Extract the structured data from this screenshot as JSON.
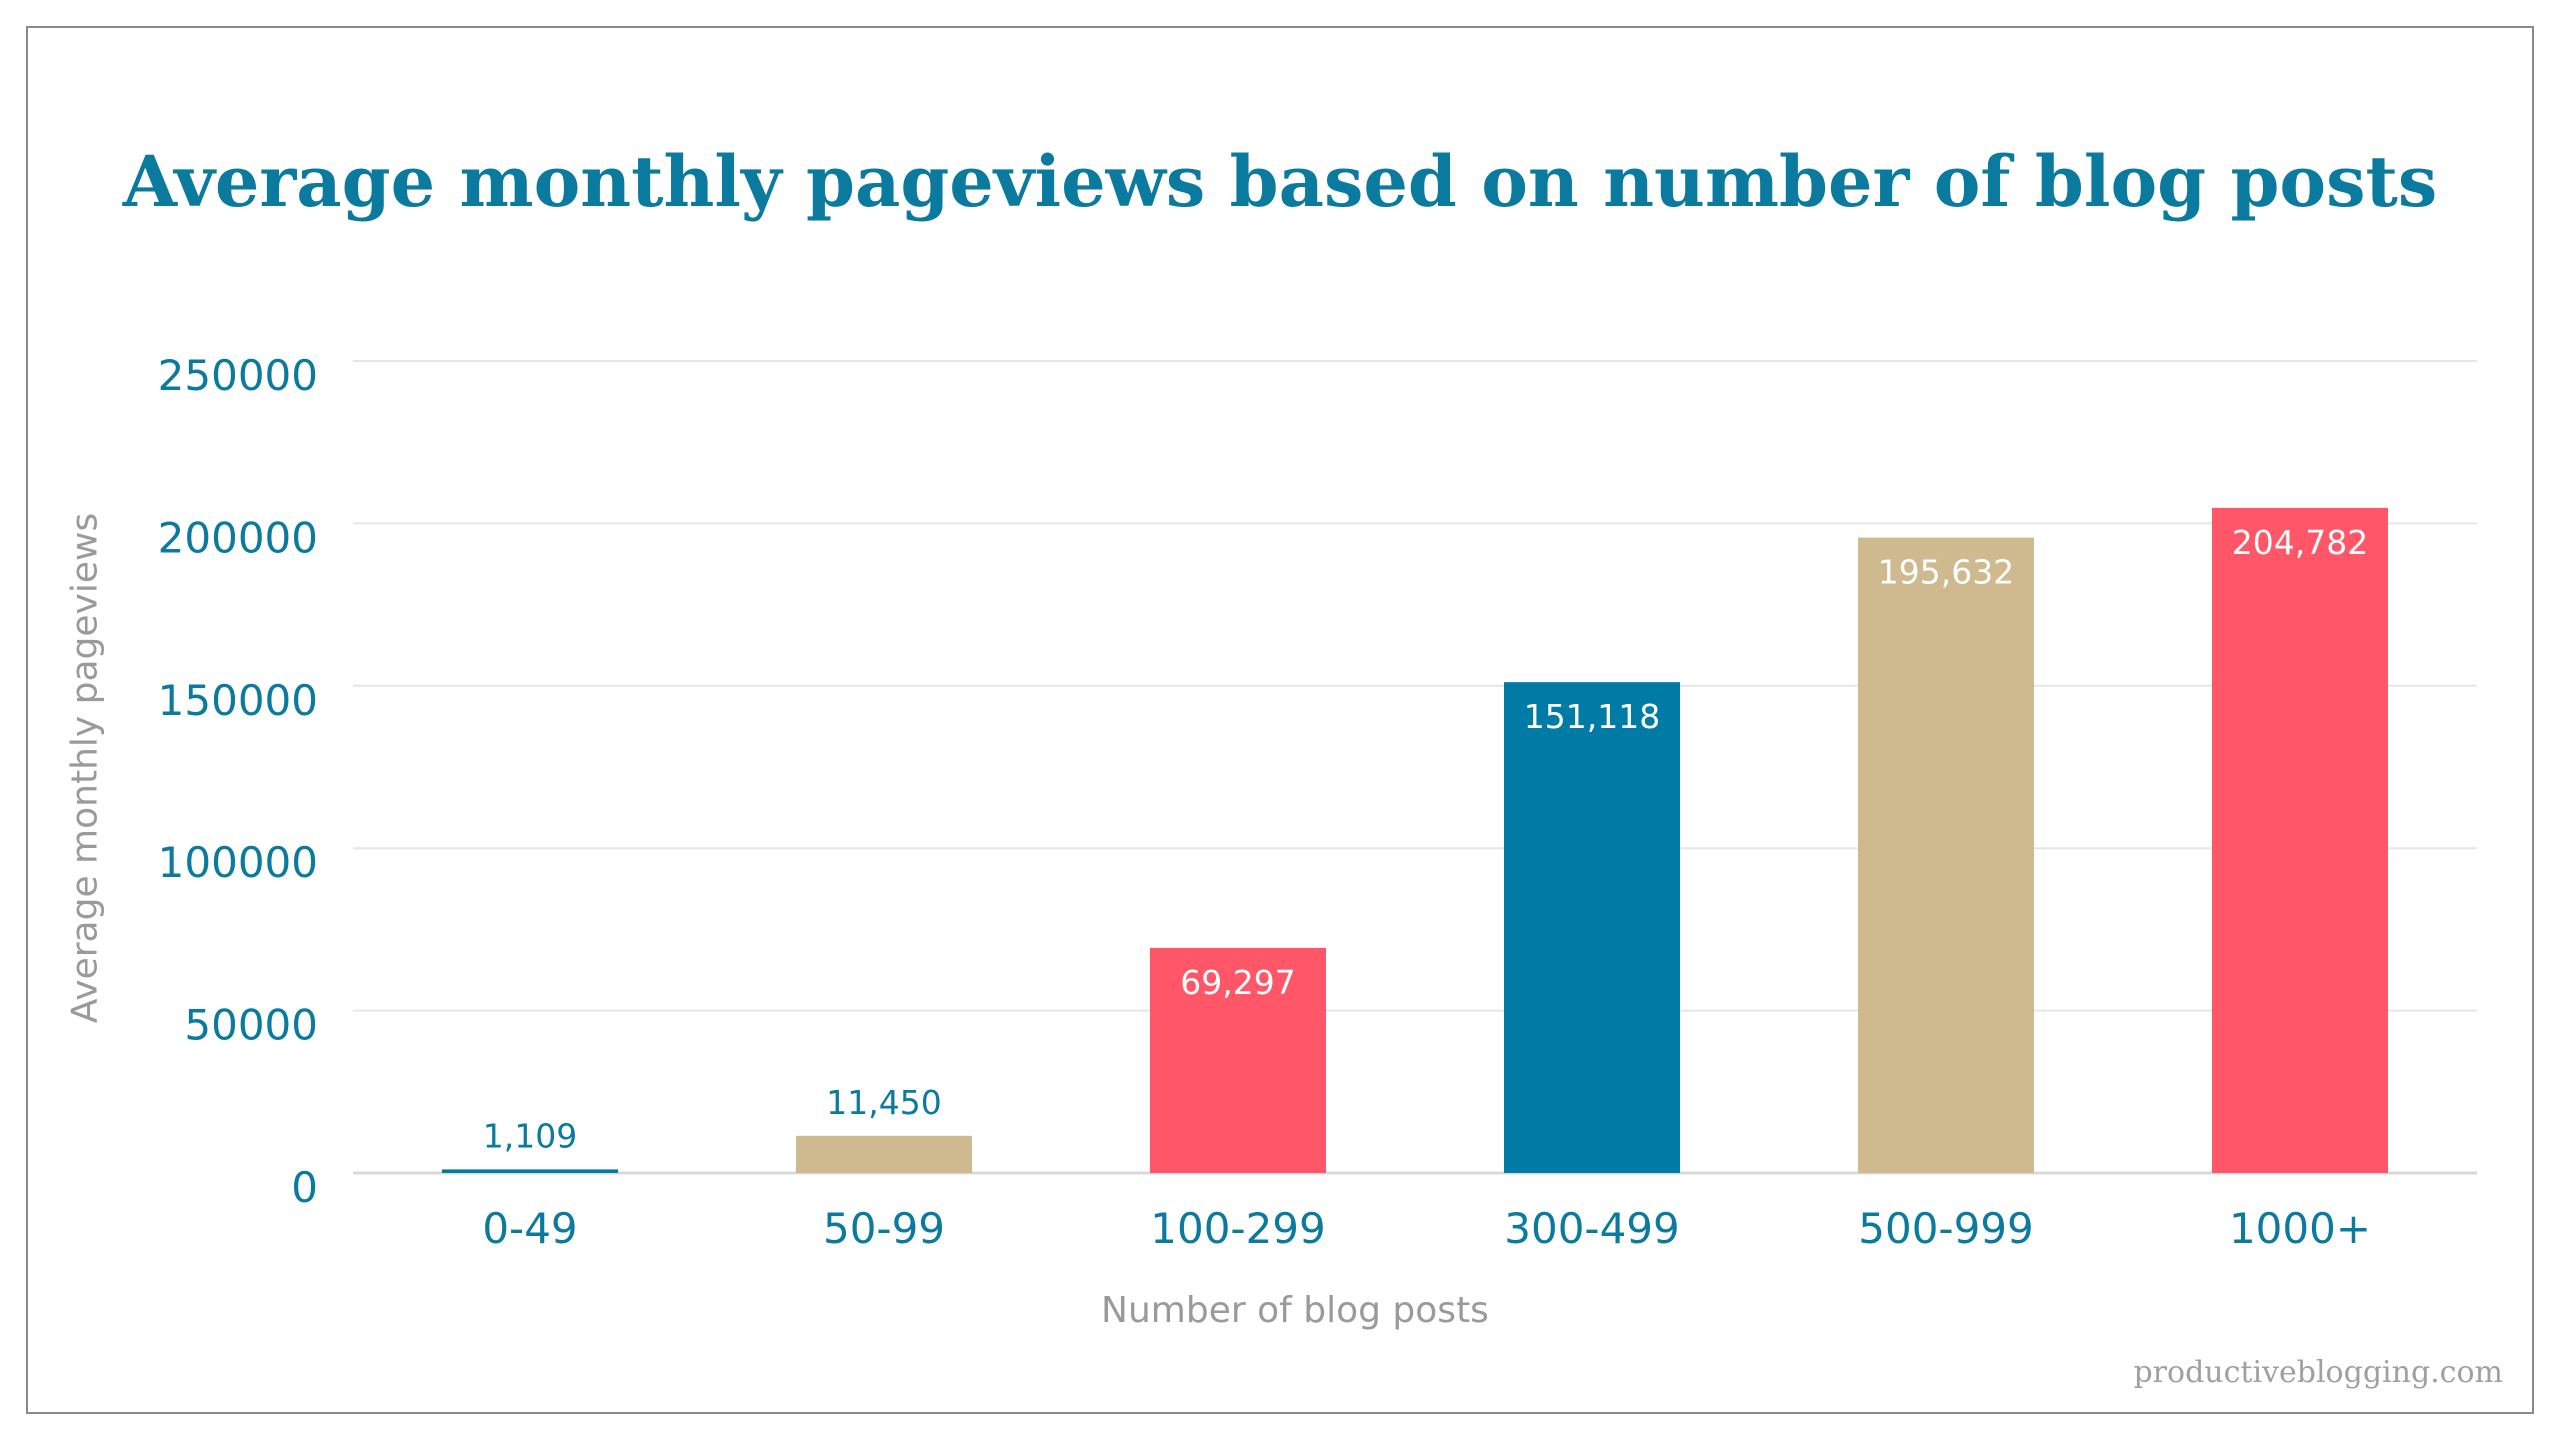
{
  "chart_data": {
    "type": "bar",
    "title": "Average monthly pageviews based on number of blog posts",
    "xlabel": "Number of blog posts",
    "ylabel": "Average monthly pageviews",
    "categories": [
      "0-49",
      "50-99",
      "100-299",
      "300-499",
      "500-999",
      "1000+"
    ],
    "values": [
      1109,
      11450,
      69297,
      151118,
      195632,
      204782
    ],
    "value_labels": [
      "1,109",
      "11,450",
      "69,297",
      "151,118",
      "195,632",
      "204,782"
    ],
    "bar_colors": [
      "#007ba5",
      "#cfb98e",
      "#ff5668",
      "#007ba5",
      "#cfb98e",
      "#ff5668"
    ],
    "ylim": [
      0,
      250000
    ],
    "yticks": [
      "0",
      "50000",
      "100000",
      "150000",
      "200000",
      "250000"
    ],
    "ytick_values": [
      0,
      50000,
      100000,
      150000,
      200000,
      250000
    ],
    "grid": true,
    "legend": "none"
  },
  "watermark": "productiveblogging.com"
}
